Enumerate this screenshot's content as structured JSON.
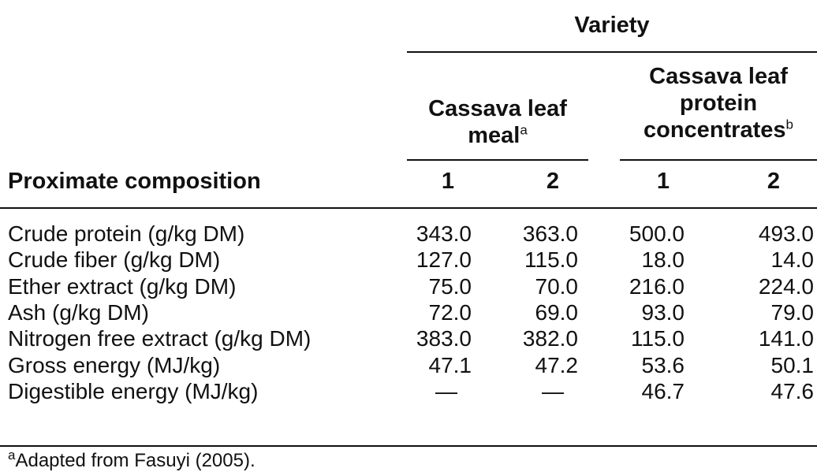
{
  "header": {
    "variety": "Variety",
    "group_leaf_meal": "Cassava leaf meal",
    "group_leaf_meal_note": "a",
    "group_protein_conc": "Cassava leaf protein concentrates",
    "group_protein_conc_note": "b",
    "stub": "Proximate composition",
    "sub_cols": [
      "1",
      "2",
      "1",
      "2"
    ]
  },
  "rows": [
    {
      "label": "Crude protein (g/kg DM)",
      "values": [
        "343.0",
        "363.0",
        "500.0",
        "493.0"
      ]
    },
    {
      "label": "Crude fiber (g/kg DM)",
      "values": [
        "127.0",
        "115.0",
        "18.0",
        "14.0"
      ]
    },
    {
      "label": "Ether extract (g/kg DM)",
      "values": [
        "75.0",
        "70.0",
        "216.0",
        "224.0"
      ]
    },
    {
      "label": "Ash (g/kg DM)",
      "values": [
        "72.0",
        "69.0",
        "93.0",
        "79.0"
      ]
    },
    {
      "label": "Nitrogen free extract (g/kg DM)",
      "values": [
        "383.0",
        "382.0",
        "115.0",
        "141.0"
      ]
    },
    {
      "label": "Gross energy (MJ/kg)",
      "values": [
        "47.1",
        "47.2",
        "53.6",
        "50.1"
      ]
    },
    {
      "label": "Digestible energy (MJ/kg)",
      "values": [
        "—",
        "—",
        "46.7",
        "47.6"
      ]
    }
  ],
  "footnote": {
    "marker": "a",
    "text": "Adapted from Fasuyi (2005)."
  }
}
